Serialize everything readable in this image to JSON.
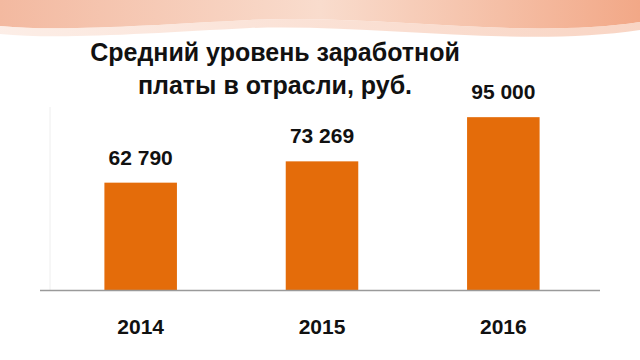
{
  "chart_data": {
    "type": "bar",
    "title": "Средний уровень заработной платы в отрасли, руб.",
    "categories": [
      "2014",
      "2015",
      "2016"
    ],
    "values": [
      62790,
      73269,
      95000
    ],
    "value_labels": [
      "62 790",
      "73 269",
      "95 000"
    ],
    "color": "#e46c0a",
    "ylim": [
      10000,
      100000
    ],
    "data_labels": true,
    "tick_labels": "x",
    "grid": false
  }
}
